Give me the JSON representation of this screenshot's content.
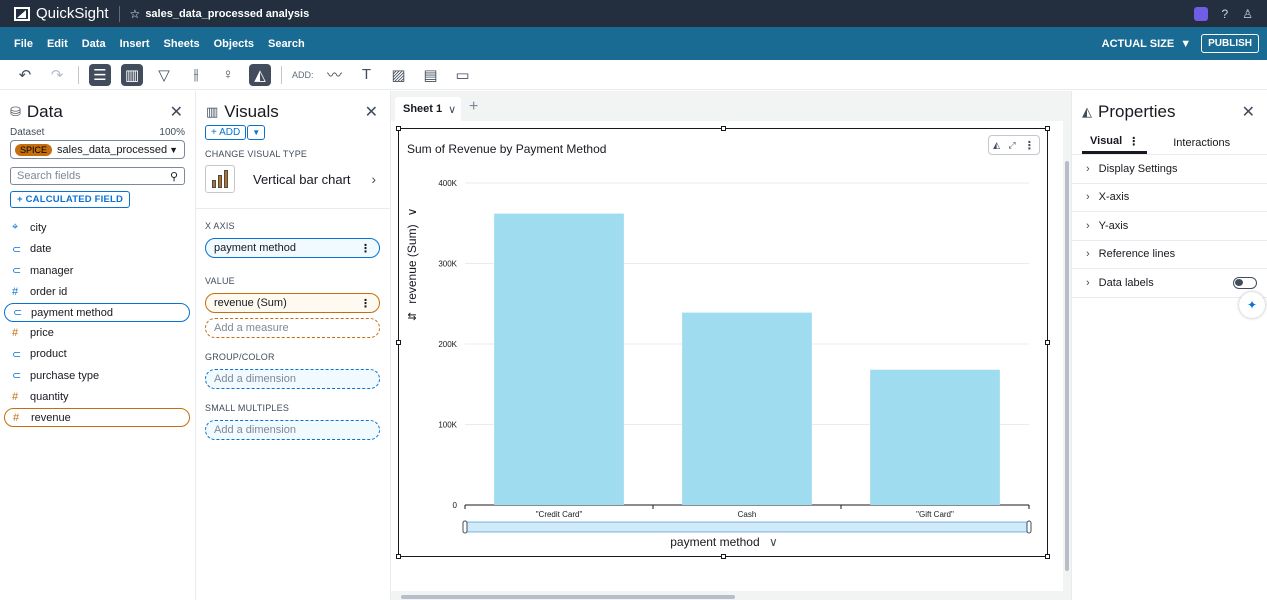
{
  "app": {
    "name": "QuickSight",
    "analysis_name": "sales_data_processed analysis"
  },
  "menubar": {
    "items": [
      "File",
      "Edit",
      "Data",
      "Insert",
      "Sheets",
      "Objects",
      "Search"
    ],
    "actual_size": "ACTUAL SIZE",
    "publish": "PUBLISH"
  },
  "toolbar": {
    "add_label": "ADD:"
  },
  "data_panel": {
    "title": "Data",
    "dataset_label": "Dataset",
    "dataset_pct": "100%",
    "spice_badge": "SPICE",
    "dataset_name": "sales_data_processed",
    "search_placeholder": "Search fields",
    "calc_field": "+ CALCULATED FIELD",
    "fields": [
      {
        "name": "city",
        "kind": "geo"
      },
      {
        "name": "date",
        "kind": "dim"
      },
      {
        "name": "manager",
        "kind": "dim"
      },
      {
        "name": "order id",
        "kind": "num"
      },
      {
        "name": "payment method",
        "kind": "dim",
        "selected": true
      },
      {
        "name": "price",
        "kind": "measure"
      },
      {
        "name": "product",
        "kind": "dim"
      },
      {
        "name": "purchase type",
        "kind": "dim"
      },
      {
        "name": "quantity",
        "kind": "measure"
      },
      {
        "name": "revenue",
        "kind": "measure",
        "selected": true
      }
    ]
  },
  "visuals_panel": {
    "title": "Visuals",
    "add": "+ ADD",
    "change_type_label": "CHANGE VISUAL TYPE",
    "visual_type": "Vertical bar chart",
    "x_axis_label": "X AXIS",
    "x_axis_field": "payment method",
    "value_label": "VALUE",
    "value_field": "revenue (Sum)",
    "add_measure": "Add a measure",
    "group_label": "GROUP/COLOR",
    "add_dimension_group": "Add a dimension",
    "small_multiples_label": "SMALL MULTIPLES",
    "add_dimension_sm": "Add a dimension"
  },
  "sheet": {
    "tab_name": "Sheet 1"
  },
  "visual": {
    "title": "Sum of Revenue by Payment Method"
  },
  "chart_data": {
    "type": "bar",
    "title": "Sum of Revenue by Payment Method",
    "categories": [
      "\"Credit Card\"",
      "Cash",
      "\"Gift Card\""
    ],
    "values": [
      362000,
      239000,
      168000
    ],
    "xlabel": "payment method",
    "ylabel": "revenue (Sum)",
    "ylim": [
      0,
      400000
    ],
    "yticks": [
      0,
      100000,
      200000,
      300000,
      400000
    ],
    "ytick_labels": [
      "0",
      "100K",
      "200K",
      "300K",
      "400K"
    ],
    "bar_color": "#a0dcf0",
    "grid": true
  },
  "properties_panel": {
    "title": "Properties",
    "tabs": [
      "Visual",
      "Interactions"
    ],
    "sections": [
      "Display Settings",
      "X-axis",
      "Y-axis",
      "Reference lines",
      "Data labels"
    ]
  },
  "colors": {
    "topbar": "#232f3e",
    "menubar": "#1a6b94",
    "accent": "#0972d3",
    "measure": "#c56e0f"
  }
}
